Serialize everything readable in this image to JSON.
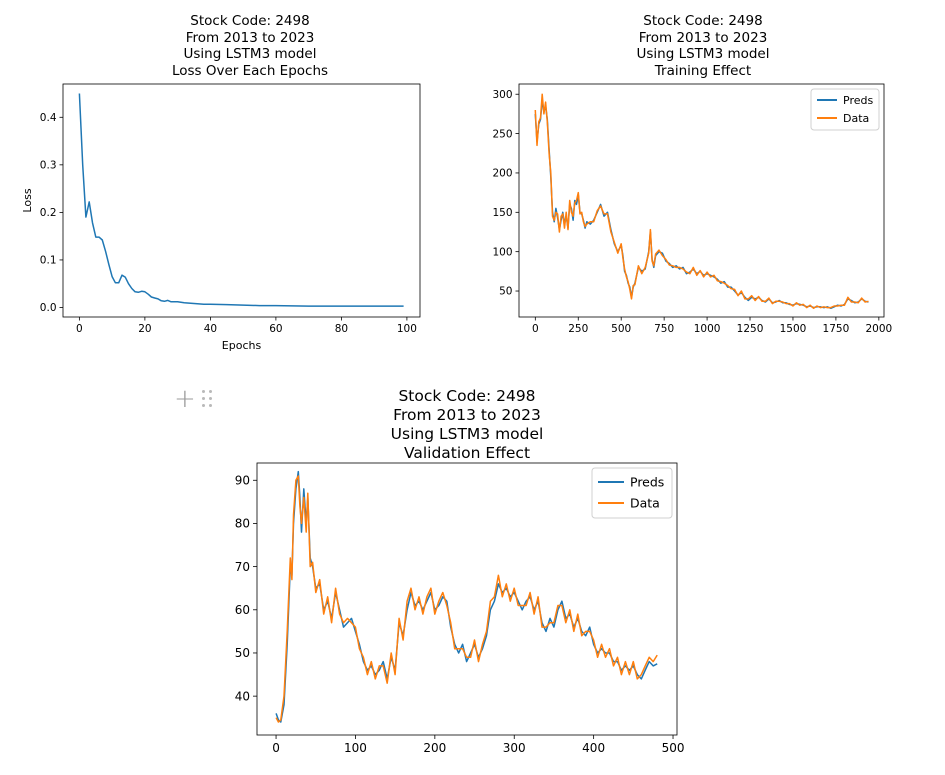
{
  "colors": {
    "preds": "#1f77b4",
    "data": "#ff7f0e"
  },
  "cell_toolbar": {
    "add_icon": "plus-icon",
    "drag_icon": "drag-handle-icon"
  },
  "chart_data": [
    {
      "id": "loss",
      "type": "line",
      "title": [
        "Stock Code: 2498",
        "From 2013 to 2023",
        "Using LSTM3 model",
        "Loss Over Each Epochs"
      ],
      "xlabel": "Epochs",
      "ylabel": "Loss",
      "xlim": [
        -5,
        104
      ],
      "ylim": [
        -0.02,
        0.47
      ],
      "xticks": [
        0,
        20,
        40,
        60,
        80,
        100
      ],
      "yticks": [
        0.0,
        0.1,
        0.2,
        0.3,
        0.4
      ],
      "ytick_labels": [
        "0.0",
        "0.1",
        "0.2",
        "0.3",
        "0.4"
      ],
      "legend": null,
      "series": [
        {
          "color": "#1f77b4",
          "x": [
            0,
            1,
            2,
            3,
            4,
            5,
            6,
            7,
            8,
            9,
            10,
            11,
            12,
            13,
            14,
            15,
            16,
            17,
            18,
            19,
            20,
            21,
            22,
            23,
            24,
            25,
            26,
            27,
            28,
            29,
            30,
            32,
            34,
            36,
            38,
            40,
            45,
            50,
            55,
            60,
            70,
            80,
            90,
            99
          ],
          "y": [
            0.45,
            0.3,
            0.19,
            0.222,
            0.178,
            0.148,
            0.148,
            0.142,
            0.118,
            0.09,
            0.065,
            0.052,
            0.052,
            0.068,
            0.064,
            0.05,
            0.04,
            0.033,
            0.032,
            0.034,
            0.033,
            0.028,
            0.022,
            0.02,
            0.018,
            0.014,
            0.013,
            0.015,
            0.012,
            0.012,
            0.012,
            0.01,
            0.009,
            0.008,
            0.007,
            0.007,
            0.006,
            0.005,
            0.004,
            0.004,
            0.003,
            0.003,
            0.003,
            0.003
          ]
        }
      ]
    },
    {
      "id": "training",
      "type": "line",
      "title": [
        "Stock Code: 2498",
        "From 2013 to 2023",
        "Using LSTM3 model",
        "Training Effect"
      ],
      "xlabel": "",
      "ylabel": "",
      "xlim": [
        -95,
        2030
      ],
      "ylim": [
        17,
        313
      ],
      "xticks": [
        0,
        250,
        500,
        750,
        1000,
        1250,
        1500,
        1750,
        2000
      ],
      "yticks": [
        50,
        100,
        150,
        200,
        250,
        300
      ],
      "legend": "top-right",
      "series": [
        {
          "name": "Preds",
          "color": "#1f77b4",
          "x": [
            0,
            10,
            20,
            30,
            40,
            50,
            60,
            70,
            80,
            90,
            100,
            110,
            120,
            130,
            140,
            150,
            160,
            170,
            180,
            190,
            200,
            210,
            220,
            230,
            240,
            250,
            260,
            270,
            280,
            290,
            300,
            320,
            340,
            360,
            380,
            400,
            420,
            440,
            460,
            480,
            500,
            510,
            520,
            530,
            540,
            550,
            560,
            570,
            580,
            600,
            620,
            640,
            660,
            670,
            680,
            690,
            700,
            720,
            740,
            760,
            780,
            800,
            820,
            840,
            860,
            880,
            900,
            920,
            940,
            960,
            980,
            1000,
            1020,
            1040,
            1060,
            1080,
            1100,
            1120,
            1140,
            1160,
            1180,
            1200,
            1220,
            1240,
            1260,
            1280,
            1300,
            1320,
            1340,
            1360,
            1380,
            1400,
            1420,
            1440,
            1460,
            1480,
            1500,
            1520,
            1540,
            1560,
            1580,
            1600,
            1620,
            1640,
            1660,
            1680,
            1700,
            1720,
            1740,
            1760,
            1780,
            1800,
            1820,
            1840,
            1860,
            1880,
            1900,
            1920,
            1940
          ],
          "y": [
            275,
            240,
            262,
            268,
            292,
            278,
            285,
            268,
            230,
            195,
            150,
            138,
            155,
            143,
            128,
            140,
            150,
            135,
            145,
            130,
            160,
            155,
            140,
            165,
            160,
            172,
            150,
            148,
            140,
            130,
            138,
            135,
            140,
            150,
            160,
            145,
            150,
            128,
            110,
            100,
            108,
            95,
            75,
            70,
            60,
            55,
            42,
            55,
            60,
            80,
            75,
            78,
            100,
            125,
            90,
            80,
            95,
            100,
            98,
            88,
            85,
            80,
            82,
            78,
            80,
            72,
            74,
            78,
            72,
            75,
            70,
            72,
            70,
            68,
            65,
            60,
            62,
            55,
            55,
            50,
            45,
            48,
            42,
            38,
            42,
            40,
            42,
            38,
            36,
            40,
            35,
            36,
            38,
            35,
            35,
            33,
            32,
            34,
            33,
            32,
            30,
            31,
            29,
            30,
            30,
            29,
            30,
            28,
            30,
            32,
            31,
            33,
            40,
            38,
            35,
            36,
            40,
            37,
            36
          ]
        },
        {
          "name": "Data",
          "color": "#ff7f0e",
          "x": [
            0,
            10,
            20,
            30,
            40,
            50,
            60,
            70,
            80,
            90,
            100,
            110,
            120,
            130,
            140,
            150,
            160,
            170,
            180,
            190,
            200,
            210,
            220,
            230,
            240,
            250,
            260,
            270,
            280,
            290,
            300,
            320,
            340,
            360,
            380,
            400,
            420,
            440,
            460,
            480,
            500,
            510,
            520,
            530,
            540,
            550,
            560,
            570,
            580,
            600,
            620,
            640,
            660,
            670,
            680,
            690,
            700,
            720,
            740,
            760,
            780,
            800,
            820,
            840,
            860,
            880,
            900,
            920,
            940,
            960,
            980,
            1000,
            1020,
            1040,
            1060,
            1080,
            1100,
            1120,
            1140,
            1160,
            1180,
            1200,
            1220,
            1240,
            1260,
            1280,
            1300,
            1320,
            1340,
            1360,
            1380,
            1400,
            1420,
            1440,
            1460,
            1480,
            1500,
            1520,
            1540,
            1560,
            1580,
            1600,
            1620,
            1640,
            1660,
            1680,
            1700,
            1720,
            1740,
            1760,
            1780,
            1800,
            1820,
            1840,
            1860,
            1880,
            1900,
            1920,
            1940
          ],
          "y": [
            280,
            235,
            265,
            270,
            300,
            275,
            290,
            265,
            225,
            200,
            145,
            140,
            150,
            148,
            125,
            145,
            148,
            130,
            150,
            128,
            165,
            150,
            145,
            162,
            165,
            175,
            148,
            150,
            138,
            132,
            135,
            138,
            138,
            152,
            158,
            148,
            148,
            125,
            112,
            98,
            110,
            92,
            78,
            68,
            62,
            52,
            40,
            57,
            58,
            82,
            72,
            80,
            98,
            128,
            88,
            82,
            97,
            102,
            95,
            90,
            83,
            82,
            80,
            80,
            78,
            74,
            72,
            80,
            70,
            76,
            68,
            74,
            68,
            70,
            63,
            62,
            60,
            57,
            53,
            52,
            44,
            50,
            40,
            40,
            44,
            38,
            43,
            37,
            37,
            41,
            34,
            37,
            37,
            36,
            34,
            34,
            31,
            35,
            32,
            33,
            29,
            32,
            28,
            31,
            29,
            30,
            29,
            29,
            31,
            31,
            32,
            32,
            42,
            36,
            36,
            35,
            41,
            36,
            37
          ]
        }
      ]
    },
    {
      "id": "validation",
      "type": "line",
      "title": [
        "Stock Code: 2498",
        "From 2013 to 2023",
        "Using LSTM3 model",
        "Validation Effect"
      ],
      "xlabel": "",
      "ylabel": "",
      "xlim": [
        -24,
        505
      ],
      "ylim": [
        31,
        94
      ],
      "xticks": [
        0,
        100,
        200,
        300,
        400,
        500
      ],
      "yticks": [
        40,
        50,
        60,
        70,
        80,
        90
      ],
      "legend": "top-right",
      "series": [
        {
          "name": "Preds",
          "color": "#1f77b4",
          "x": [
            0,
            3,
            6,
            10,
            14,
            18,
            20,
            22,
            25,
            28,
            30,
            32,
            35,
            38,
            40,
            43,
            46,
            50,
            55,
            60,
            65,
            70,
            75,
            80,
            85,
            90,
            95,
            100,
            105,
            110,
            115,
            120,
            125,
            130,
            135,
            140,
            145,
            150,
            155,
            160,
            165,
            170,
            175,
            180,
            185,
            190,
            195,
            200,
            205,
            210,
            215,
            220,
            225,
            230,
            235,
            240,
            245,
            250,
            255,
            260,
            265,
            270,
            275,
            280,
            285,
            290,
            295,
            300,
            305,
            310,
            315,
            320,
            325,
            330,
            335,
            340,
            345,
            350,
            355,
            360,
            365,
            370,
            375,
            380,
            385,
            390,
            395,
            400,
            405,
            410,
            415,
            420,
            425,
            430,
            435,
            440,
            445,
            450,
            455,
            460,
            465,
            470,
            475,
            480
          ],
          "y": [
            36,
            34.5,
            34,
            38,
            52,
            70,
            68,
            80,
            88,
            92,
            86,
            78,
            88,
            80,
            86,
            72,
            70,
            65,
            66,
            60,
            62,
            58,
            64,
            60,
            56,
            57,
            58,
            55,
            52,
            48,
            46,
            47,
            45,
            46,
            48,
            44,
            49,
            46,
            57,
            54,
            60,
            64,
            61,
            62,
            60,
            62,
            64,
            60,
            61,
            63,
            62,
            56,
            52,
            50,
            52,
            48,
            50,
            52,
            49,
            51,
            54,
            60,
            62,
            66,
            64,
            65,
            63,
            64,
            62,
            60,
            62,
            63,
            60,
            62,
            57,
            55,
            58,
            56,
            60,
            62,
            58,
            59,
            56,
            58,
            55,
            54,
            56,
            52,
            50,
            51,
            50,
            50,
            48,
            48,
            46,
            47,
            46,
            47,
            45,
            44,
            46,
            48,
            47,
            47.5
          ]
        },
        {
          "name": "Data",
          "color": "#ff7f0e",
          "x": [
            0,
            3,
            6,
            10,
            14,
            18,
            20,
            22,
            25,
            28,
            30,
            32,
            35,
            38,
            40,
            43,
            46,
            50,
            55,
            60,
            65,
            70,
            75,
            80,
            85,
            90,
            95,
            100,
            105,
            110,
            115,
            120,
            125,
            130,
            135,
            140,
            145,
            150,
            155,
            160,
            165,
            170,
            175,
            180,
            185,
            190,
            195,
            200,
            205,
            210,
            215,
            220,
            225,
            230,
            235,
            240,
            245,
            250,
            255,
            260,
            265,
            270,
            275,
            280,
            285,
            290,
            295,
            300,
            305,
            310,
            315,
            320,
            325,
            330,
            335,
            340,
            345,
            350,
            355,
            360,
            365,
            370,
            375,
            380,
            385,
            390,
            395,
            400,
            405,
            410,
            415,
            420,
            425,
            430,
            435,
            440,
            445,
            450,
            455,
            460,
            465,
            470,
            475,
            480
          ],
          "y": [
            35,
            34,
            34.5,
            40,
            55,
            72,
            67,
            82,
            90,
            91,
            84,
            80,
            86,
            78,
            87,
            70,
            71,
            64,
            67,
            59,
            63,
            57,
            65,
            59,
            57,
            58,
            57,
            56,
            51,
            49,
            45,
            48,
            44,
            47,
            47,
            43,
            50,
            45,
            58,
            53,
            62,
            65,
            60,
            63,
            59,
            63,
            65,
            59,
            62,
            64,
            61,
            57,
            51,
            51,
            51,
            49,
            49,
            53,
            48,
            52,
            55,
            62,
            63,
            68,
            63,
            66,
            62,
            65,
            61,
            61,
            61,
            64,
            59,
            63,
            56,
            56,
            57,
            57,
            61,
            61,
            57,
            60,
            55,
            59,
            54,
            55,
            55,
            53,
            49,
            52,
            49,
            51,
            47,
            49,
            45,
            48,
            45,
            48,
            44,
            45,
            47,
            49,
            48,
            49.5
          ]
        }
      ]
    }
  ]
}
